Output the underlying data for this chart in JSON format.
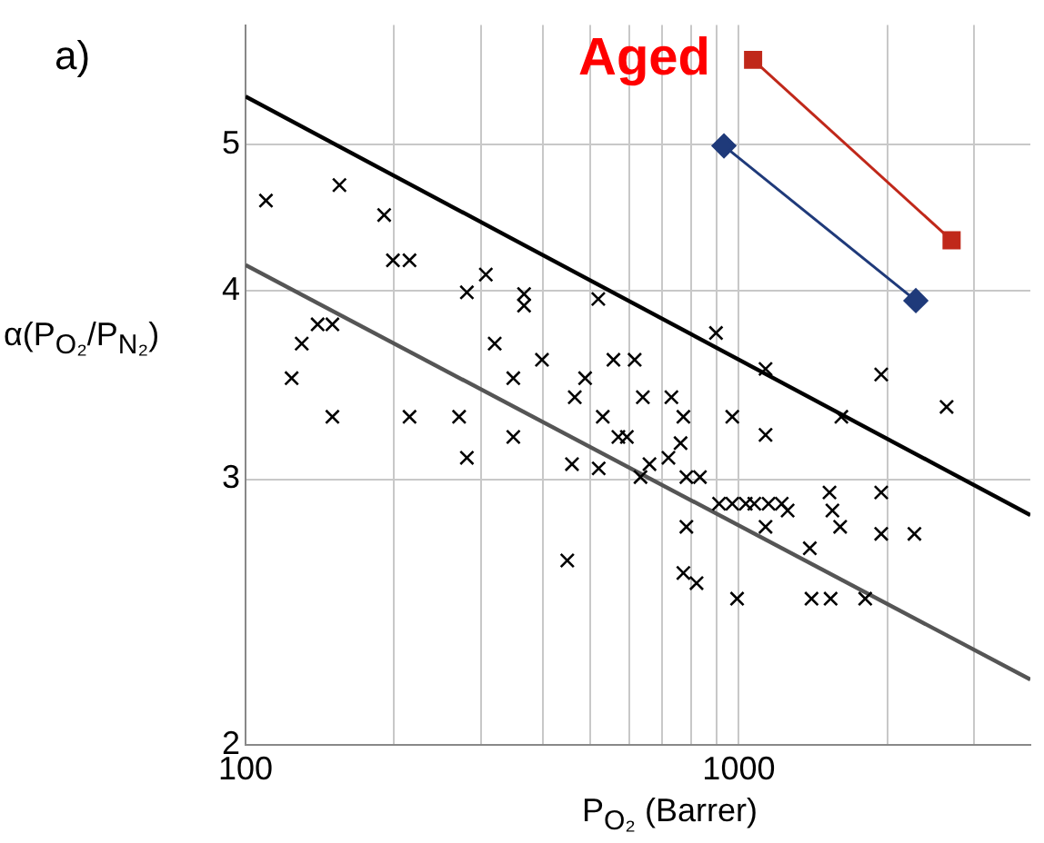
{
  "chart_data": {
    "type": "scatter",
    "xlabel": "P$_{O₂}$ (Barrer)",
    "ylabel": "α(P$_{O₂}$/P$_{N₂}$)",
    "log": "xy",
    "grid": true,
    "legend": false,
    "marker": "cross",
    "xlim": [
      100,
      3900
    ],
    "ylim": [
      2,
      6
    ],
    "xticks": [
      100,
      {
        "value": 200,
        "label": null
      },
      {
        "value": 300,
        "label": null
      },
      {
        "value": 400,
        "label": null
      },
      {
        "value": 500,
        "label": null
      },
      {
        "value": 600,
        "label": null
      },
      {
        "value": 700,
        "label": null
      },
      {
        "value": 800,
        "label": null
      },
      {
        "value": 900,
        "label": null
      },
      1000,
      {
        "value": 2000,
        "label": null
      },
      {
        "value": 3000,
        "label": null
      }
    ],
    "yticks": [
      2,
      3,
      4,
      5
    ],
    "annotations": [
      "a)",
      "Aged"
    ],
    "series": [
      {
        "color": "#000000",
        "x": [
          110,
          155,
          191,
          199,
          215,
          281,
          307,
          367,
          367,
          519,
          124,
          130,
          140,
          150,
          150,
          215,
          271,
          320,
          349,
          399,
          488,
          465,
          530,
          281,
          349,
          459,
          520,
          449,
          899,
          1133,
          1944,
          2638,
          557,
          615,
          639,
          730,
          772,
          970,
          1614,
          1133,
          593,
          570,
          762,
          720,
          659,
          632,
          783,
          834,
          912,
          970,
          1033,
          1075,
          1149,
          1222,
          1256,
          1133,
          783,
          1527,
          1548,
          1605,
          1944,
          1944,
          2270,
          1393,
          772,
          821,
          992,
          1404,
          1535,
          1804
        ],
        "values": [
          4.59,
          4.7,
          4.49,
          4.19,
          4.19,
          3.99,
          4.1,
          3.98,
          3.91,
          3.95,
          3.5,
          3.69,
          3.8,
          3.8,
          3.3,
          3.3,
          3.3,
          3.69,
          3.5,
          3.6,
          3.5,
          3.4,
          3.3,
          3.1,
          3.2,
          3.07,
          3.05,
          2.65,
          3.75,
          3.55,
          3.52,
          3.35,
          3.6,
          3.6,
          3.4,
          3.4,
          3.3,
          3.3,
          3.3,
          3.21,
          3.2,
          3.2,
          3.17,
          3.1,
          3.07,
          3.01,
          3.01,
          3.01,
          2.89,
          2.89,
          2.89,
          2.89,
          2.89,
          2.89,
          2.86,
          2.79,
          2.79,
          2.94,
          2.86,
          2.79,
          2.94,
          2.76,
          2.76,
          2.7,
          2.6,
          2.56,
          2.5,
          2.5,
          2.5,
          2.5
        ]
      },
      {
        "type": "line",
        "color": "#000000",
        "marker": "none",
        "x": [
          100,
          3900
        ],
        "values": [
          5.38,
          2.84
        ]
      },
      {
        "type": "line",
        "color": "#555555",
        "marker": "none",
        "x": [
          100,
          3900
        ],
        "values": [
          4.16,
          2.21
        ]
      },
      {
        "type": "line",
        "color": "#c0281a",
        "marker": "square",
        "x": [
          1069,
          2700
        ],
        "values": [
          5.69,
          4.32
        ]
      },
      {
        "type": "line",
        "color": "#1f3a7a",
        "marker": "diamond",
        "x": [
          933,
          2285
        ],
        "values": [
          4.99,
          3.94
        ]
      }
    ]
  }
}
